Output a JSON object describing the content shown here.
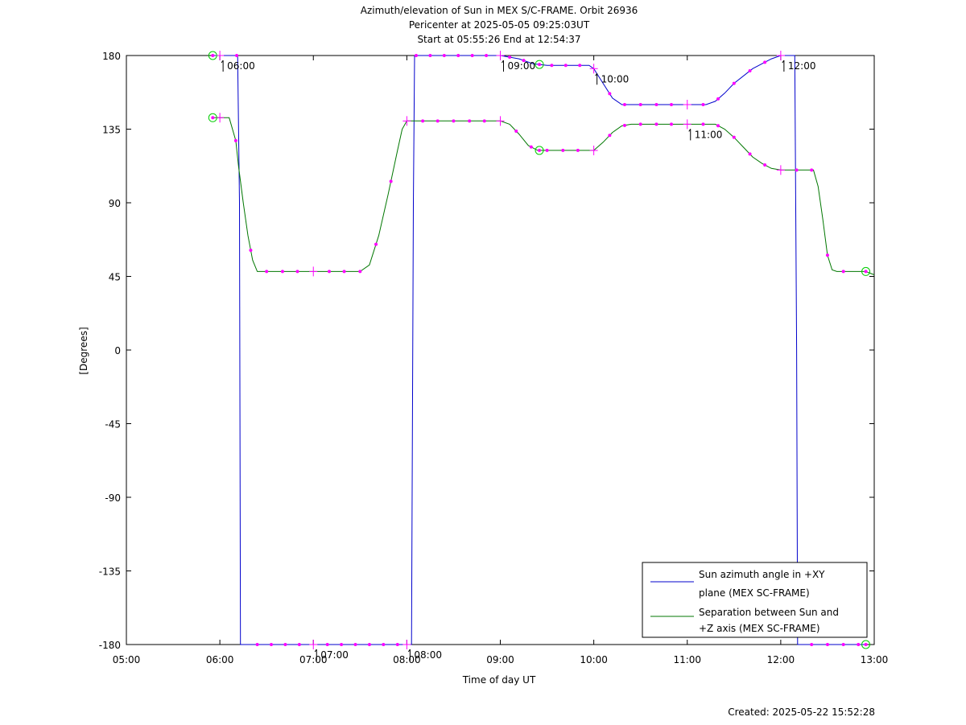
{
  "chart_data": {
    "type": "line",
    "title": "Azimuth/elevation of Sun in MEX S/C-FRAME.  Orbit 26936",
    "subtitle_1": "Pericenter at 2025-05-05 09:25:03UT",
    "subtitle_2": "Start at 05:55:26 End at 12:54:37",
    "xlabel": "Time of day UT",
    "ylabel": "[Degrees]",
    "xlim": [
      5.0,
      13.0
    ],
    "ylim": [
      -180,
      180
    ],
    "x_ticks": [
      "05:00",
      "06:00",
      "07:00",
      "08:00",
      "09:00",
      "10:00",
      "11:00",
      "12:00",
      "13:00"
    ],
    "y_ticks": [
      "180",
      "135",
      "90",
      "45",
      "0",
      "-45",
      "-90",
      "-135",
      "-180"
    ],
    "grid": false,
    "legend_position": "bottom-right",
    "series": [
      {
        "name": "Sun azimuth angle in +XY plane (MEX SC-FRAME)",
        "legend_line1": "Sun azimuth angle in +XY",
        "legend_line2": "plane (MEX SC-FRAME)",
        "color": "#0000cc",
        "x": [
          5.924,
          6.0,
          6.19,
          6.21,
          6.22,
          6.4,
          6.6,
          7.0,
          7.5,
          8.0,
          8.05,
          8.07,
          8.083,
          8.1,
          8.5,
          9.0,
          9.2,
          9.35,
          9.5,
          9.8,
          9.95,
          10.0,
          10.1,
          10.2,
          10.3,
          10.4,
          10.6,
          10.8,
          11.0,
          11.2,
          11.3,
          11.4,
          11.5,
          11.7,
          11.9,
          12.0,
          12.1,
          12.15,
          12.17,
          12.18,
          12.2,
          12.5,
          12.91
        ],
        "y": [
          180,
          180,
          180,
          90,
          -180,
          -180,
          -180,
          -180,
          -180,
          -180,
          -180,
          90,
          180,
          180,
          180,
          180,
          178,
          175,
          174,
          174,
          174,
          172,
          163,
          154,
          150,
          150,
          150,
          150,
          150,
          150,
          152,
          157,
          163,
          172,
          178,
          180,
          180,
          180,
          0,
          -180,
          -180,
          -180,
          -180
        ]
      },
      {
        "name": "Separation between Sun and +Z axis (MEX SC-FRAME)",
        "legend_line1": "Separation between Sun and",
        "legend_line2": "+Z axis (MEX SC-FRAME)",
        "color": "#007700",
        "x": [
          5.924,
          6.0,
          6.1,
          6.17,
          6.2,
          6.25,
          6.3,
          6.35,
          6.4,
          6.45,
          6.6,
          7.0,
          7.5,
          7.6,
          7.7,
          7.8,
          7.9,
          7.95,
          8.0,
          8.5,
          9.0,
          9.1,
          9.2,
          9.3,
          9.4,
          9.5,
          9.8,
          10.0,
          10.1,
          10.2,
          10.3,
          10.4,
          10.8,
          11.0,
          11.3,
          11.4,
          11.5,
          11.6,
          11.7,
          11.8,
          11.9,
          12.0,
          12.2,
          12.35,
          12.4,
          12.45,
          12.5,
          12.55,
          12.6,
          12.91,
          13.0
        ],
        "y": [
          142,
          142,
          142,
          128,
          112,
          90,
          70,
          55,
          48,
          48,
          48,
          48,
          48,
          52,
          70,
          95,
          122,
          135,
          140,
          140,
          140,
          138,
          132,
          125,
          122,
          122,
          122,
          122,
          127,
          133,
          137,
          138,
          138,
          138,
          138,
          135,
          130,
          124,
          118,
          114,
          111,
          110,
          110,
          110,
          100,
          80,
          58,
          49,
          48,
          48,
          46
        ]
      }
    ],
    "markers": {
      "color": "#ff00ff",
      "azimuth_dots_x": [
        6.18,
        6.4,
        6.55,
        6.7,
        6.85,
        7.15,
        7.3,
        7.45,
        7.6,
        7.75,
        7.9,
        8.1,
        8.25,
        8.4,
        8.55,
        8.7,
        8.85,
        9.1,
        9.25,
        9.55,
        9.7,
        9.85,
        10.17,
        10.33,
        10.5,
        10.67,
        10.83,
        11.17,
        11.33,
        11.5,
        11.67,
        11.83,
        12.33,
        12.5,
        12.67,
        12.83
      ],
      "separation_dots_x": [
        6.17,
        6.33,
        6.5,
        6.67,
        6.83,
        7.17,
        7.33,
        7.5,
        7.67,
        7.83,
        8.17,
        8.33,
        8.5,
        8.67,
        8.83,
        9.17,
        9.33,
        9.5,
        9.67,
        9.83,
        10.17,
        10.33,
        10.5,
        10.67,
        10.83,
        11.17,
        11.33,
        11.5,
        11.67,
        11.83,
        12.17,
        12.33,
        12.5,
        12.67
      ],
      "hour_crosses_x": [
        6.0,
        7.0,
        8.0,
        9.0,
        10.0,
        11.0,
        12.0
      ],
      "circle_color": "#00cc00",
      "circles_x": [
        5.924,
        9.418,
        12.91
      ]
    },
    "hour_annotations": [
      {
        "label": "06:00",
        "x": 6.0,
        "y": 180
      },
      {
        "label": "07:00",
        "x": 7.0,
        "y": -180
      },
      {
        "label": "08:00",
        "x": 8.0,
        "y": -180
      },
      {
        "label": "09:00",
        "x": 9.0,
        "y": 180
      },
      {
        "label": "10:00",
        "x": 10.0,
        "y": 172
      },
      {
        "label": "11:00",
        "x": 11.0,
        "y": 138
      },
      {
        "label": "12:00",
        "x": 12.0,
        "y": 180
      }
    ]
  },
  "footer": {
    "created": "Created: 2025-05-22 15:52:28"
  }
}
